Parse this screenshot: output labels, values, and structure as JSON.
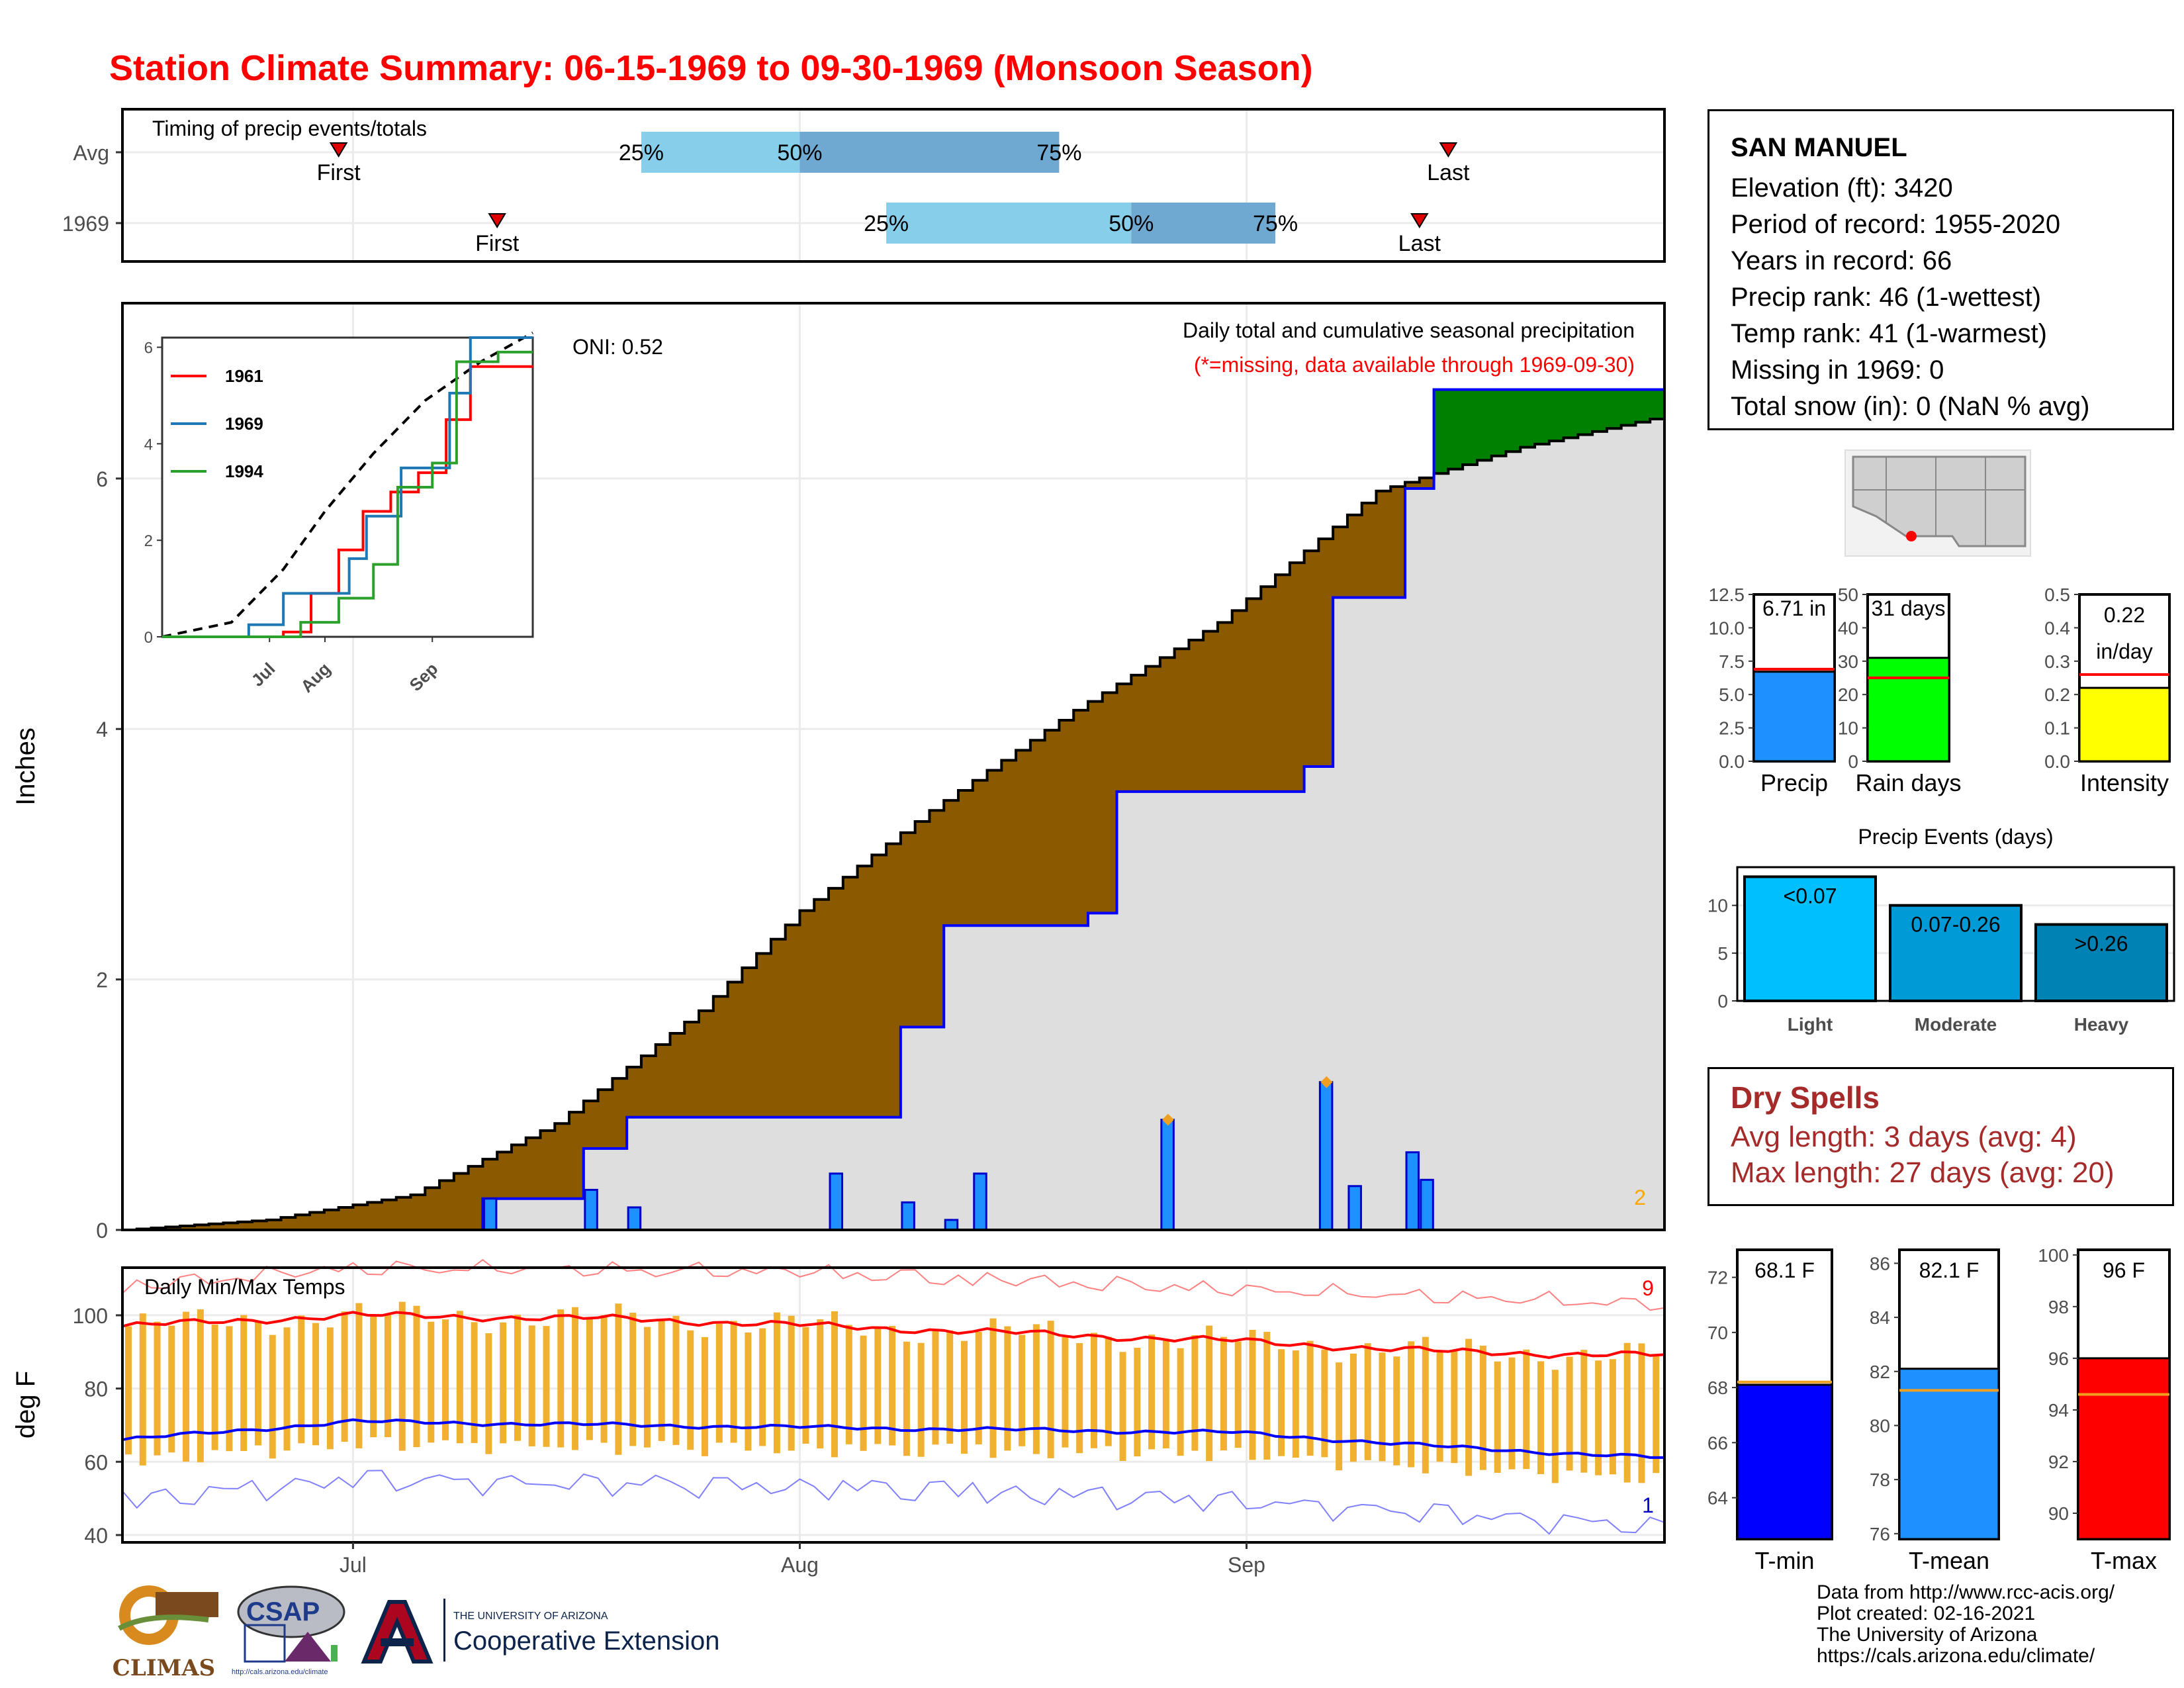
{
  "title": "Station Climate Summary: 06-15-1969 to 09-30-1969 (Monsoon Season)",
  "station": {
    "name": "SAN MANUEL",
    "lines": [
      "Elevation (ft): 3420",
      "Period of record: 1955-2020",
      "Years in record: 66",
      "Precip rank: 46 (1-wettest)",
      "Temp rank: 41 (1-warmest)",
      "Missing in 1969: 0",
      "Total snow (in): 0 (NaN % avg)"
    ]
  },
  "dry_spells": {
    "heading": "Dry Spells",
    "avg": "Avg length: 3 days (avg: 4)",
    "max": "Max length: 27 days (avg: 20)"
  },
  "credits": [
    "Data from http://www.rcc-acis.org/",
    "Plot created: 02-16-2021",
    "The University of Arizona",
    "https://cals.arizona.edu/climate/"
  ],
  "logos": {
    "climas": "CLIMAS",
    "csap": "CSAP",
    "csap_url": "http://cals.arizona.edu/climate",
    "ua_small": "THE UNIVERSITY OF ARIZONA",
    "ua_big": "Cooperative Extension"
  },
  "colors": {
    "title": "#ff0000",
    "above_avg_fill": "#008000",
    "below_avg_fill": "#8b5a00",
    "cum_1969_line": "#0000ff",
    "bars_precip": "#1e90ff",
    "temp_range_bars": "#f0b030",
    "tmax_line": "#ff0000",
    "tmin_line": "#0000ff"
  },
  "chart_data": [
    {
      "type": "bar",
      "id": "timing",
      "title": "Timing of precip events/totals",
      "categories": [
        "Avg",
        "1969"
      ],
      "series": [
        {
          "name": "Avg",
          "first": "1969-06-30",
          "p25": "1969-07-21",
          "p50": "1969-08-01",
          "p75": "1969-08-19",
          "last": "1969-09-15"
        },
        {
          "name": "1969",
          "first": "1969-07-11",
          "p25": "1969-08-07",
          "p50": "1969-08-24",
          "p75": "1969-09-03",
          "last": "1969-09-13"
        }
      ],
      "labels": {
        "first": "First",
        "last": "Last",
        "p25": "25%",
        "p50": "50%",
        "p75": "75%"
      }
    },
    {
      "type": "area",
      "id": "precip",
      "title": "Daily total and cumulative seasonal precipitation",
      "subtitle": "(*=missing, data available through 1969-09-30)",
      "annotation": "ONI: 0.52",
      "ylabel": "Inches",
      "ylim": [
        0,
        7.4
      ],
      "yticks": [
        0,
        2,
        4,
        6
      ],
      "xticks": [
        "Jul",
        "Aug",
        "Sep"
      ],
      "corner_label": "2",
      "avg_cumulative_key": {
        "x": [
          "1969-06-15",
          "1969-06-25",
          "1969-07-05",
          "1969-07-15",
          "1969-07-25",
          "1969-08-01",
          "1969-08-10",
          "1969-08-20",
          "1969-08-30",
          "1969-09-10",
          "1969-09-20",
          "1969-09-30"
        ],
        "y": [
          0.0,
          0.08,
          0.28,
          0.85,
          1.75,
          2.55,
          3.35,
          4.15,
          4.85,
          5.9,
          6.25,
          6.5
        ]
      },
      "cumulative_1969_key": {
        "x": [
          "1969-06-15",
          "1969-07-10",
          "1969-07-17",
          "1969-07-20",
          "1969-08-08",
          "1969-08-11",
          "1969-08-21",
          "1969-08-23",
          "1969-09-05",
          "1969-09-07",
          "1969-09-12",
          "1969-09-14",
          "1969-09-30"
        ],
        "y": [
          0.0,
          0.25,
          0.65,
          0.9,
          1.62,
          2.43,
          2.53,
          3.5,
          3.7,
          5.05,
          5.92,
          6.71,
          6.71
        ]
      },
      "daily_bars": [
        {
          "date": "1969-07-10",
          "value": 0.25
        },
        {
          "date": "1969-07-17",
          "value": 0.32
        },
        {
          "date": "1969-07-20",
          "value": 0.18
        },
        {
          "date": "1969-08-03",
          "value": 0.45
        },
        {
          "date": "1969-08-08",
          "value": 0.22
        },
        {
          "date": "1969-08-11",
          "value": 0.08
        },
        {
          "date": "1969-08-13",
          "value": 0.45
        },
        {
          "date": "1969-08-26",
          "value": 0.88
        },
        {
          "date": "1969-09-06",
          "value": 1.18
        },
        {
          "date": "1969-09-08",
          "value": 0.35
        },
        {
          "date": "1969-09-12",
          "value": 0.62
        },
        {
          "date": "1969-09-13",
          "value": 0.4
        }
      ],
      "flagged_days": [
        {
          "date": "1969-08-26",
          "value": 0.88
        },
        {
          "date": "1969-09-06",
          "value": 1.18
        }
      ]
    },
    {
      "type": "line",
      "id": "inset",
      "xticks": [
        "Jul",
        "Aug",
        "Sep"
      ],
      "yticks": [
        0,
        2,
        4,
        6
      ],
      "ylim": [
        0,
        6.2
      ],
      "series": [
        {
          "name": "1961",
          "color": "#ff0000",
          "x": [
            "1969-06-15",
            "1969-07-20",
            "1969-07-28",
            "1969-08-05",
            "1969-08-12",
            "1969-08-20",
            "1969-08-28",
            "1969-09-05",
            "1969-09-12",
            "1969-09-30"
          ],
          "y": [
            0,
            0.1,
            0.9,
            1.8,
            2.6,
            3.0,
            3.4,
            4.5,
            5.6,
            5.6
          ]
        },
        {
          "name": "1969",
          "color": "#1f77b4",
          "x": [
            "1969-06-15",
            "1969-07-10",
            "1969-07-20",
            "1969-08-08",
            "1969-08-13",
            "1969-08-23",
            "1969-09-06",
            "1969-09-12",
            "1969-09-30"
          ],
          "y": [
            0,
            0.25,
            0.9,
            1.62,
            2.5,
            3.5,
            5.05,
            6.71,
            6.71
          ]
        },
        {
          "name": "1994",
          "color": "#2ca02c",
          "x": [
            "1969-06-15",
            "1969-07-25",
            "1969-08-05",
            "1969-08-15",
            "1969-08-22",
            "1969-09-01",
            "1969-09-08",
            "1969-09-20",
            "1969-09-30"
          ],
          "y": [
            0,
            0.3,
            0.8,
            1.5,
            3.1,
            3.6,
            5.7,
            5.9,
            5.9
          ]
        }
      ],
      "avg_dashed": {
        "x": [
          "1969-06-15",
          "1969-07-05",
          "1969-07-20",
          "1969-08-01",
          "1969-08-15",
          "1969-08-30",
          "1969-09-15",
          "1969-09-30"
        ],
        "y": [
          0,
          0.3,
          1.4,
          2.6,
          3.8,
          4.9,
          5.7,
          6.3
        ]
      }
    },
    {
      "type": "line",
      "id": "temps",
      "title": "Daily Min/Max Temps",
      "ylabel": "deg F",
      "ylim": [
        38,
        113
      ],
      "yticks": [
        40,
        60,
        80,
        100
      ],
      "xticks": [
        "Jul",
        "Aug",
        "Sep"
      ],
      "corner_top": "9",
      "corner_bottom": "1",
      "tmax_avg_key": {
        "x": [
          "1969-06-15",
          "1969-07-01",
          "1969-07-20",
          "1969-08-10",
          "1969-08-31",
          "1969-09-15",
          "1969-09-30"
        ],
        "y": [
          97,
          100,
          99,
          96,
          93,
          90,
          89
        ]
      },
      "tmin_avg_key": {
        "x": [
          "1969-06-15",
          "1969-07-01",
          "1969-07-20",
          "1969-08-10",
          "1969-08-31",
          "1969-09-15",
          "1969-09-30"
        ],
        "y": [
          66,
          71,
          70,
          69,
          68,
          64,
          61
        ]
      },
      "tmax_record_key": {
        "x": [
          "1969-06-15",
          "1969-07-01",
          "1969-08-01",
          "1969-09-01",
          "1969-09-30"
        ],
        "y": [
          106,
          111,
          110,
          105,
          101
        ]
      },
      "tmin_record_key": {
        "x": [
          "1969-06-15",
          "1969-07-01",
          "1969-08-01",
          "1969-09-01",
          "1969-09-30"
        ],
        "y": [
          52,
          58,
          56,
          52,
          45
        ]
      }
    },
    {
      "type": "bar",
      "id": "gauges",
      "panels": [
        {
          "name": "Precip",
          "value": 6.71,
          "avg": 6.9,
          "label": "6.71 in",
          "color": "#1e90ff",
          "ylim": [
            0,
            12.5
          ],
          "yticks": [
            "0.0",
            "2.5",
            "5.0",
            "7.5",
            "10.0",
            "12.5"
          ]
        },
        {
          "name": "Rain days",
          "value": 31,
          "avg": 25,
          "label": "31 days",
          "color": "#00ff00",
          "ylim": [
            0,
            50
          ],
          "yticks": [
            "0",
            "10",
            "20",
            "30",
            "40",
            "50"
          ]
        },
        {
          "name": "Intensity",
          "value": 0.22,
          "avg": 0.26,
          "label": "0.22",
          "label2": "in/day",
          "color": "#ffff00",
          "ylim": [
            0,
            0.5
          ],
          "yticks": [
            "0.0",
            "0.1",
            "0.2",
            "0.3",
            "0.4",
            "0.5"
          ]
        }
      ]
    },
    {
      "type": "bar",
      "id": "events",
      "title": "Precip Events (days)",
      "categories": [
        "Light",
        "Moderate",
        "Heavy"
      ],
      "values": [
        13,
        10,
        8
      ],
      "labels": [
        "<0.07",
        "0.07-0.26",
        ">0.26"
      ],
      "colors": [
        "#00bfff",
        "#009ad6",
        "#0082b4"
      ],
      "ylim": [
        0,
        14
      ],
      "yticks": [
        0,
        5,
        10
      ]
    },
    {
      "type": "bar",
      "id": "temp-gauges",
      "panels": [
        {
          "name": "T-min",
          "value": 68.1,
          "avg": 68.2,
          "label": "68.1 F",
          "color": "#0000ff",
          "ylim": [
            62.5,
            73
          ],
          "yticks": [
            64,
            66,
            68,
            70,
            72
          ]
        },
        {
          "name": "T-mean",
          "value": 82.1,
          "avg": 81.3,
          "label": "82.1 F",
          "color": "#1e90ff",
          "ylim": [
            75.8,
            86.5
          ],
          "yticks": [
            76,
            78,
            80,
            82,
            84,
            86
          ]
        },
        {
          "name": "T-max",
          "value": 96,
          "avg": 94.6,
          "label": "96 F",
          "color": "#ff0000",
          "ylim": [
            89,
            100.2
          ],
          "yticks": [
            90,
            92,
            94,
            96,
            98,
            100
          ]
        }
      ]
    }
  ]
}
